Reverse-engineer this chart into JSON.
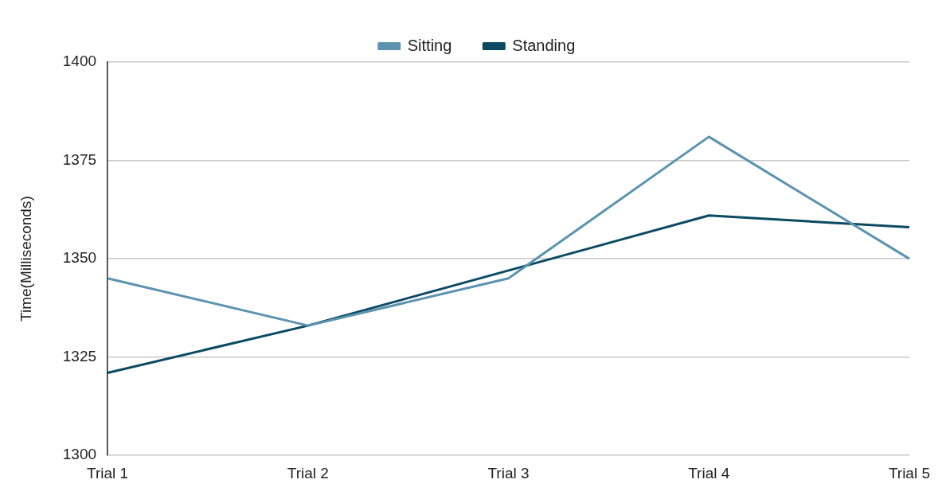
{
  "chart_data": {
    "type": "line",
    "ylabel": "Time(Milliseconds)",
    "categories": [
      "Trial 1",
      "Trial 2",
      "Trial 3",
      "Trial 4",
      "Trial 5"
    ],
    "series": [
      {
        "name": "Sitting",
        "color": "#5b93b0",
        "values": [
          1345,
          1333,
          1345,
          1381,
          1350
        ]
      },
      {
        "name": "Standing",
        "color": "#0b4a63",
        "values": [
          1321,
          1333,
          1347,
          1361,
          1358
        ]
      }
    ],
    "ylim": [
      1300,
      1400
    ],
    "yticks": [
      1300,
      1325,
      1350,
      1375,
      1400
    ],
    "grid": "y",
    "legend": "top",
    "marker": "none"
  }
}
